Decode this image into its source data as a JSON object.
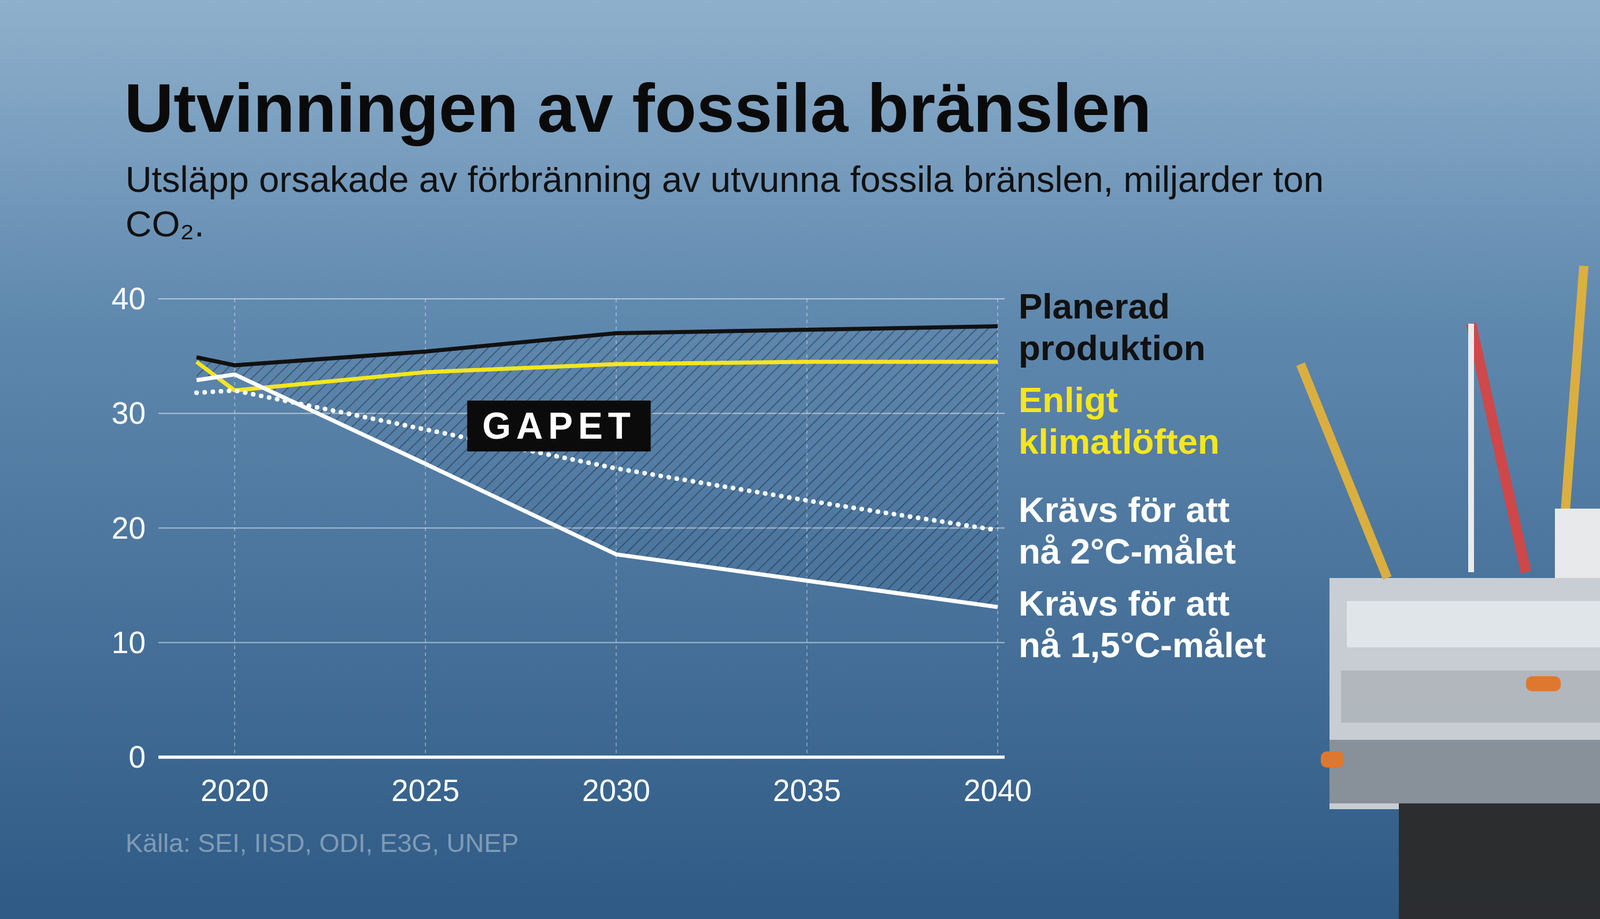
{
  "chart_data": {
    "type": "line",
    "title": "Utvinningen av fossila bränslen",
    "subtitle": "Utsläpp orsakade av förbränning av utvunna fossila bränslen, miljarder ton CO₂.",
    "source": "Källa: SEI, IISD, ODI, E3G, UNEP",
    "x": [
      2019,
      2020,
      2025,
      2030,
      2035,
      2040
    ],
    "series": [
      {
        "name": "Planerad produktion",
        "color": "#111111",
        "line_style": "solid",
        "values": [
          34.9,
          34.2,
          35.4,
          37.0,
          37.3,
          37.6
        ]
      },
      {
        "name": "Enligt klimatlöften",
        "color": "#f5e61e",
        "line_style": "solid",
        "values": [
          34.5,
          32.0,
          33.6,
          34.3,
          34.5,
          34.5
        ]
      },
      {
        "name": "Krävs för att nå 2°C-målet",
        "color": "#ffffff",
        "line_style": "dotted",
        "values": [
          31.8,
          32.0,
          28.6,
          25.2,
          22.4,
          19.8
        ]
      },
      {
        "name": "Krävs för att nå 1,5°C-målet",
        "color": "#ffffff",
        "line_style": "solid",
        "values": [
          32.9,
          33.4,
          25.6,
          17.7,
          15.4,
          13.1
        ]
      }
    ],
    "annotations": [
      {
        "text": "GAPET",
        "x": 2028.5,
        "y": 28.9
      }
    ],
    "xlim": [
      2018,
      2040
    ],
    "xticks": [
      2020,
      2025,
      2030,
      2035,
      2040
    ],
    "ylim": [
      0,
      40
    ],
    "yticks": [
      0,
      10,
      20,
      30,
      40
    ],
    "grid": true
  }
}
